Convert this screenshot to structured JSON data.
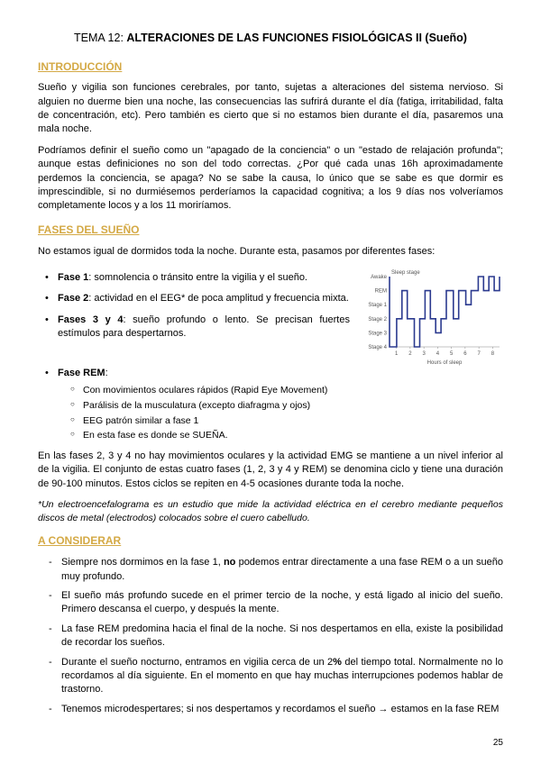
{
  "title": {
    "prefix": "TEMA 12: ",
    "main": "ALTERACIONES DE LAS FUNCIONES FISIOLÓGICAS II (Sueño)"
  },
  "s1": {
    "header": "INTRODUCCIÓN",
    "p1": "Sueño y vigilia son funciones cerebrales, por tanto, sujetas a alteraciones del sistema nervioso. Si alguien no duerme bien una noche, las consecuencias las sufrirá durante el día (fatiga, irritabilidad, falta de concentración, etc). Pero también es cierto que si no estamos bien durante el día, pasaremos una mala noche.",
    "p2": "Podríamos definir el sueño como un \"apagado de la conciencia\" o un \"estado de relajación profunda\"; aunque estas definiciones no son del todo correctas. ¿Por qué cada unas 16h aproximadamente perdemos la conciencia, se apaga? No se sabe la causa, lo único que se sabe es que dormir es imprescindible, si no durmiésemos perderíamos la capacidad cognitiva; a los 9 días nos volveríamos completamente locos y a los 11 moriríamos."
  },
  "s2": {
    "header": "FASES DEL SUEÑO",
    "intro": "No estamos igual de dormidos toda la noche. Durante esta, pasamos por diferentes fases:",
    "f1_b": "Fase 1",
    "f1_t": ": somnolencia o tránsito entre la vigilia y el sueño.",
    "f2_b": "Fase 2",
    "f2_t": ": actividad en el EEG* de poca amplitud y frecuencia mixta.",
    "f34_b": "Fases 3 y 4",
    "f34_t": ": sueño profundo o lento. Se precisan fuertes estímulos para despertarnos.",
    "rem_b": "Fase REM",
    "rem_t": ":",
    "rem_sub": [
      "Con movimientos oculares rápidos (Rapid Eye Movement)",
      "Parálisis de la musculatura (excepto diafragma y ojos)",
      "EEG patrón similar a fase 1",
      "En esta fase es donde se SUEÑA."
    ],
    "p_after": "En las fases 2, 3 y 4 no hay movimientos oculares y la actividad EMG se mantiene a un nivel inferior al de la vigilia. El conjunto de estas cuatro fases (1, 2, 3 y 4 y REM) se denomina ciclo y tiene una duración de 90-100 minutos. Estos ciclos se repiten en 4-5 ocasiones durante toda la noche.",
    "footnote": "*Un electroencefalograma es un estudio que mide la actividad eléctrica en el cerebro mediante pequeños discos de metal (electrodos) colocados sobre el cuero cabelludo."
  },
  "chart": {
    "y_title": "Sleep stage",
    "y_labels": [
      "Awake",
      "REM",
      "Stage 1",
      "Stage 2",
      "Stage 3",
      "Stage 4"
    ],
    "x_labels": [
      "1",
      "2",
      "3",
      "4",
      "5",
      "6",
      "7",
      "8"
    ],
    "x_title": "Hours of sleep",
    "line_color": "#2b3a8f",
    "bg": "#ffffff",
    "points": [
      [
        0,
        0
      ],
      [
        0,
        5
      ],
      [
        8,
        5
      ],
      [
        8,
        3
      ],
      [
        14,
        3
      ],
      [
        14,
        1
      ],
      [
        20,
        1
      ],
      [
        20,
        3
      ],
      [
        28,
        3
      ],
      [
        28,
        5
      ],
      [
        34,
        5
      ],
      [
        34,
        3
      ],
      [
        40,
        3
      ],
      [
        40,
        1
      ],
      [
        46,
        1
      ],
      [
        46,
        3
      ],
      [
        52,
        3
      ],
      [
        52,
        4
      ],
      [
        58,
        4
      ],
      [
        58,
        3
      ],
      [
        64,
        3
      ],
      [
        64,
        1
      ],
      [
        72,
        1
      ],
      [
        72,
        3
      ],
      [
        78,
        3
      ],
      [
        78,
        1
      ],
      [
        86,
        1
      ],
      [
        86,
        2
      ],
      [
        92,
        2
      ],
      [
        92,
        1
      ],
      [
        100,
        1
      ],
      [
        100,
        0
      ],
      [
        106,
        0
      ],
      [
        106,
        1
      ],
      [
        112,
        1
      ],
      [
        112,
        0
      ],
      [
        118,
        0
      ],
      [
        118,
        1
      ],
      [
        124,
        1
      ],
      [
        124,
        0
      ]
    ]
  },
  "s3": {
    "header": "A CONSIDERAR",
    "i1a": "Siempre nos dormimos en la fase 1, ",
    "i1b": "no",
    "i1c": " podemos entrar directamente a una fase REM o a un sueño muy profundo.",
    "i2": "El sueño más profundo sucede en el primer tercio de la noche, y está ligado al inicio del sueño. Primero descansa el cuerpo, y después la mente.",
    "i3": "La fase REM predomina hacia el final de la noche. Si nos despertamos en ella, existe la posibilidad de recordar los sueños.",
    "i4a": "Durante el sueño nocturno, entramos en vigilia cerca de un 2",
    "i4b": "%",
    "i4c": " del tiempo total. Normalmente no lo recordamos al día siguiente. En el momento en que hay muchas interrupciones podemos hablar de trastorno.",
    "i5": "Tenemos microdespertares; si nos despertamos y recordamos el sueño → estamos en la fase REM"
  },
  "page": "25"
}
